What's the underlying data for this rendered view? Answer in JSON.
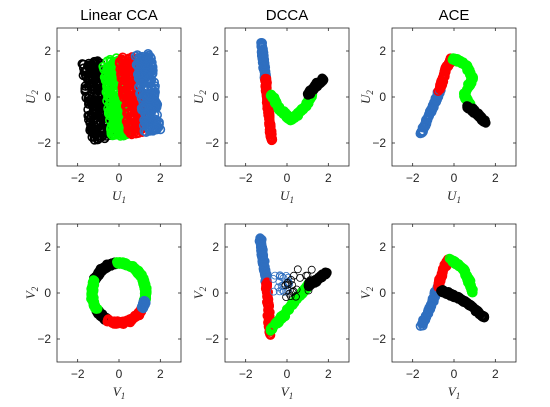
{
  "chart_data": [
    {
      "type": "scatter",
      "title": "Linear CCA",
      "xlabel": "U",
      "xlabel_sub": "1",
      "ylabel": "U",
      "ylabel_sub": "2",
      "xlim": [
        -3,
        3
      ],
      "ylim": [
        -3,
        3
      ],
      "xticks": [
        -2,
        0,
        2
      ],
      "yticks": [
        -2,
        0,
        2
      ],
      "grid": false,
      "series": [
        {
          "color": "#000000",
          "marker": "open-circle",
          "region": {
            "shape": "rotated-square",
            "u_range": [
              -1.6,
              -0.6
            ],
            "v_range": [
              -1.7,
              1.7
            ],
            "angle_deg": 8
          }
        },
        {
          "color": "#00ff00",
          "marker": "open-circle",
          "region": {
            "shape": "rotated-square",
            "u_range": [
              -0.6,
              0.2
            ],
            "v_range": [
              -1.7,
              1.7
            ],
            "angle_deg": 8
          }
        },
        {
          "color": "#ff0000",
          "marker": "open-circle",
          "region": {
            "shape": "rotated-square",
            "u_range": [
              0.2,
              1.0
            ],
            "v_range": [
              -1.7,
              1.7
            ],
            "angle_deg": 8
          }
        },
        {
          "color": "#2f6fc0",
          "marker": "open-circle",
          "region": {
            "shape": "rotated-square",
            "u_range": [
              1.0,
              1.8
            ],
            "v_range": [
              -1.7,
              1.7
            ],
            "angle_deg": 8
          }
        }
      ]
    },
    {
      "type": "scatter",
      "title": "DCCA",
      "xlabel": "U",
      "xlabel_sub": "1",
      "ylabel": "U",
      "ylabel_sub": "2",
      "xlim": [
        -3,
        3
      ],
      "ylim": [
        -3,
        3
      ],
      "xticks": [
        -2,
        0,
        2
      ],
      "yticks": [
        -2,
        0,
        2
      ],
      "grid": false,
      "series": [
        {
          "color": "#2f6fc0",
          "marker": "open-circle",
          "path": [
            [
              -1.25,
              2.45
            ],
            [
              -1.15,
              1.6
            ],
            [
              -1.05,
              0.8
            ]
          ]
        },
        {
          "color": "#ff0000",
          "marker": "open-circle",
          "path": [
            [
              -1.05,
              0.8
            ],
            [
              -0.95,
              -0.2
            ],
            [
              -0.85,
              -1.0
            ],
            [
              -0.75,
              -1.9
            ]
          ]
        },
        {
          "color": "#00ff00",
          "marker": "open-circle",
          "path": [
            [
              -0.75,
              0.1
            ],
            [
              -0.4,
              -0.5
            ],
            [
              0.2,
              -1.0
            ],
            [
              0.9,
              -0.4
            ],
            [
              1.2,
              0.1
            ]
          ]
        },
        {
          "color": "#000000",
          "marker": "open-circle",
          "path": [
            [
              1.0,
              0.1
            ],
            [
              1.4,
              0.5
            ],
            [
              1.75,
              0.75
            ]
          ]
        }
      ]
    },
    {
      "type": "scatter",
      "title": "ACE",
      "xlabel": "U",
      "xlabel_sub": "1",
      "ylabel": "U",
      "ylabel_sub": "2",
      "xlim": [
        -3,
        3
      ],
      "ylim": [
        -3,
        3
      ],
      "xticks": [
        -2,
        0,
        2
      ],
      "yticks": [
        -2,
        0,
        2
      ],
      "grid": false,
      "series": [
        {
          "color": "#2f6fc0",
          "marker": "open-circle",
          "path": [
            [
              -1.6,
              -1.6
            ],
            [
              -1.1,
              -0.6
            ],
            [
              -0.7,
              0.3
            ]
          ]
        },
        {
          "color": "#ff0000",
          "marker": "open-circle",
          "path": [
            [
              -0.7,
              0.3
            ],
            [
              -0.4,
              1.2
            ],
            [
              -0.1,
              1.7
            ]
          ]
        },
        {
          "color": "#00ff00",
          "marker": "open-circle",
          "path": [
            [
              -0.1,
              1.7
            ],
            [
              0.6,
              1.4
            ],
            [
              0.9,
              0.8
            ],
            [
              0.5,
              0.1
            ],
            [
              0.8,
              -0.4
            ]
          ]
        },
        {
          "color": "#000000",
          "marker": "open-circle",
          "path": [
            [
              0.6,
              -0.4
            ],
            [
              1.1,
              -0.7
            ],
            [
              1.5,
              -1.1
            ]
          ]
        }
      ]
    },
    {
      "type": "scatter",
      "title": "",
      "xlabel": "V",
      "xlabel_sub": "1",
      "ylabel": "V",
      "ylabel_sub": "2",
      "xlim": [
        -3,
        3
      ],
      "ylim": [
        -3,
        3
      ],
      "xticks": [
        -2,
        0,
        2
      ],
      "yticks": [
        -2,
        0,
        2
      ],
      "grid": false,
      "series": [
        {
          "color": "#000000",
          "marker": "open-circle",
          "ring": {
            "center": [
              0,
              0
            ],
            "radius": 1.3,
            "theta_deg": [
              95,
              155
            ]
          }
        },
        {
          "color": "#000000",
          "marker": "open-circle",
          "ring": {
            "center": [
              0,
              0
            ],
            "radius": 1.3,
            "theta_deg": [
              215,
              245
            ]
          }
        },
        {
          "color": "#00ff00",
          "marker": "open-circle",
          "ring": {
            "center": [
              0,
              0
            ],
            "radius": 1.3,
            "theta_deg": [
              155,
              215
            ]
          }
        },
        {
          "color": "#00ff00",
          "marker": "open-circle",
          "ring": {
            "center": [
              0,
              0
            ],
            "radius": 1.3,
            "theta_deg": [
              -15,
              35
            ]
          }
        },
        {
          "color": "#ff0000",
          "marker": "open-circle",
          "ring": {
            "center": [
              0,
              0
            ],
            "radius": 1.3,
            "theta_deg": [
              245,
              330
            ]
          }
        },
        {
          "color": "#2f6fc0",
          "marker": "open-circle",
          "ring": {
            "center": [
              0,
              0
            ],
            "radius": 1.3,
            "theta_deg": [
              330,
              345
            ]
          }
        },
        {
          "color": "#00ff00",
          "marker": "open-circle",
          "ring": {
            "center": [
              0,
              0
            ],
            "radius": 1.3,
            "theta_deg": [
              35,
              95
            ]
          }
        }
      ]
    },
    {
      "type": "scatter",
      "title": "",
      "xlabel": "V",
      "xlabel_sub": "1",
      "ylabel": "V",
      "ylabel_sub": "2",
      "xlim": [
        -3,
        3
      ],
      "ylim": [
        -3,
        3
      ],
      "xticks": [
        -2,
        0,
        2
      ],
      "yticks": [
        -2,
        0,
        2
      ],
      "grid": false,
      "series": [
        {
          "color": "#2f6fc0",
          "marker": "open-circle",
          "path": [
            [
              -1.3,
              2.4
            ],
            [
              -1.15,
              1.4
            ],
            [
              -1.0,
              0.5
            ]
          ]
        },
        {
          "color": "#ff0000",
          "marker": "open-circle",
          "path": [
            [
              -1.0,
              0.5
            ],
            [
              -0.9,
              -0.6
            ],
            [
              -0.8,
              -1.8
            ]
          ]
        },
        {
          "color": "#00ff00",
          "marker": "open-circle",
          "path": [
            [
              -0.8,
              -1.6
            ],
            [
              -0.1,
              -0.9
            ],
            [
              0.7,
              0.0
            ],
            [
              1.1,
              0.4
            ]
          ]
        },
        {
          "color": "#000000",
          "marker": "open-circle",
          "path": [
            [
              1.0,
              0.3
            ],
            [
              1.5,
              0.6
            ],
            [
              1.9,
              0.9
            ]
          ]
        },
        {
          "color": "#2f6fc0",
          "marker": "open-circle",
          "cloud": {
            "x_range": [
              -0.7,
              0.3
            ],
            "y_range": [
              0.0,
              1.2
            ],
            "count": 22
          }
        },
        {
          "color": "#000000",
          "marker": "open-circle",
          "cloud": {
            "x_range": [
              -0.3,
              1.2
            ],
            "y_range": [
              -0.2,
              1.1
            ],
            "count": 22
          }
        }
      ]
    },
    {
      "type": "scatter",
      "title": "",
      "xlabel": "V",
      "xlabel_sub": "1",
      "ylabel": "V",
      "ylabel_sub": "2",
      "xlim": [
        -3,
        3
      ],
      "ylim": [
        -3,
        3
      ],
      "xticks": [
        -2,
        0,
        2
      ],
      "yticks": [
        -2,
        0,
        2
      ],
      "grid": false,
      "series": [
        {
          "color": "#2f6fc0",
          "marker": "open-circle",
          "path": [
            [
              -1.6,
              -1.5
            ],
            [
              -1.1,
              -0.5
            ],
            [
              -0.75,
              0.3
            ]
          ]
        },
        {
          "color": "#ff0000",
          "marker": "open-circle",
          "path": [
            [
              -0.75,
              0.3
            ],
            [
              -0.5,
              1.1
            ],
            [
              -0.2,
              1.5
            ]
          ]
        },
        {
          "color": "#00ff00",
          "marker": "open-circle",
          "path": [
            [
              -0.2,
              1.5
            ],
            [
              0.4,
              1.1
            ],
            [
              0.7,
              0.6
            ],
            [
              0.9,
              0.0
            ]
          ]
        },
        {
          "color": "#000000",
          "marker": "open-circle",
          "path": [
            [
              -0.6,
              0.1
            ],
            [
              0.2,
              -0.2
            ],
            [
              0.9,
              -0.6
            ],
            [
              1.5,
              -1.1
            ]
          ]
        }
      ]
    }
  ]
}
